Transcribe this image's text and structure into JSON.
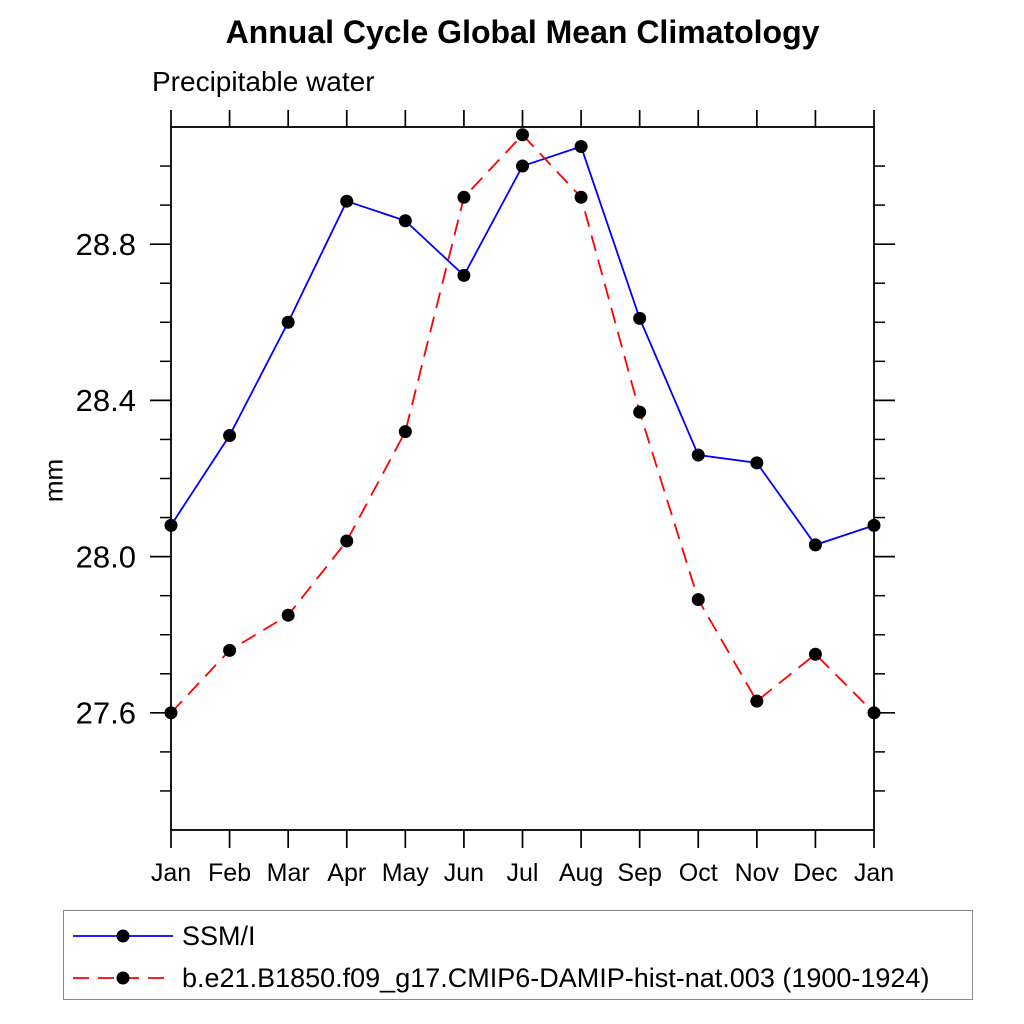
{
  "page": {
    "title": "Annual Cycle Global Mean Climatology",
    "subtitle": "Precipitable water"
  },
  "chart_data": {
    "type": "line",
    "title": "Annual Cycle Global Mean Climatology",
    "subtitle": "Precipitable water",
    "ylabel": "mm",
    "xlabel": "",
    "x": [
      "Jan",
      "Feb",
      "Mar",
      "Apr",
      "May",
      "Jun",
      "Jul",
      "Aug",
      "Sep",
      "Oct",
      "Nov",
      "Dec",
      "Jan"
    ],
    "series": [
      {
        "name": "SSM/I",
        "line_style": "solid",
        "color": "#0000ff",
        "marker": "filled-circle",
        "marker_color": "#000000",
        "values": [
          28.08,
          28.31,
          28.6,
          28.91,
          28.86,
          28.72,
          29.0,
          29.05,
          28.61,
          28.26,
          28.24,
          28.03,
          28.08
        ]
      },
      {
        "name": "b.e21.B1850.f09_g17.CMIP6-DAMIP-hist-nat.003 (1900-1924)",
        "line_style": "dashed",
        "color": "#ff0000",
        "marker": "filled-circle",
        "marker_color": "#000000",
        "values": [
          27.6,
          27.76,
          27.85,
          28.04,
          28.32,
          28.92,
          29.08,
          28.92,
          28.37,
          27.89,
          27.63,
          27.75,
          27.6
        ]
      }
    ],
    "ylim": [
      27.3,
      29.1
    ],
    "yticks_major": [
      {
        "v": 27.6,
        "label": "27.6"
      },
      {
        "v": 28.0,
        "label": "28.0"
      },
      {
        "v": 28.4,
        "label": "28.4"
      },
      {
        "v": 28.8,
        "label": "28.8"
      }
    ],
    "ytick_minor_step": 0.1,
    "grid": false,
    "legend_position": "bottom",
    "axis_color": "#000000",
    "background_color": "#ffffff"
  }
}
